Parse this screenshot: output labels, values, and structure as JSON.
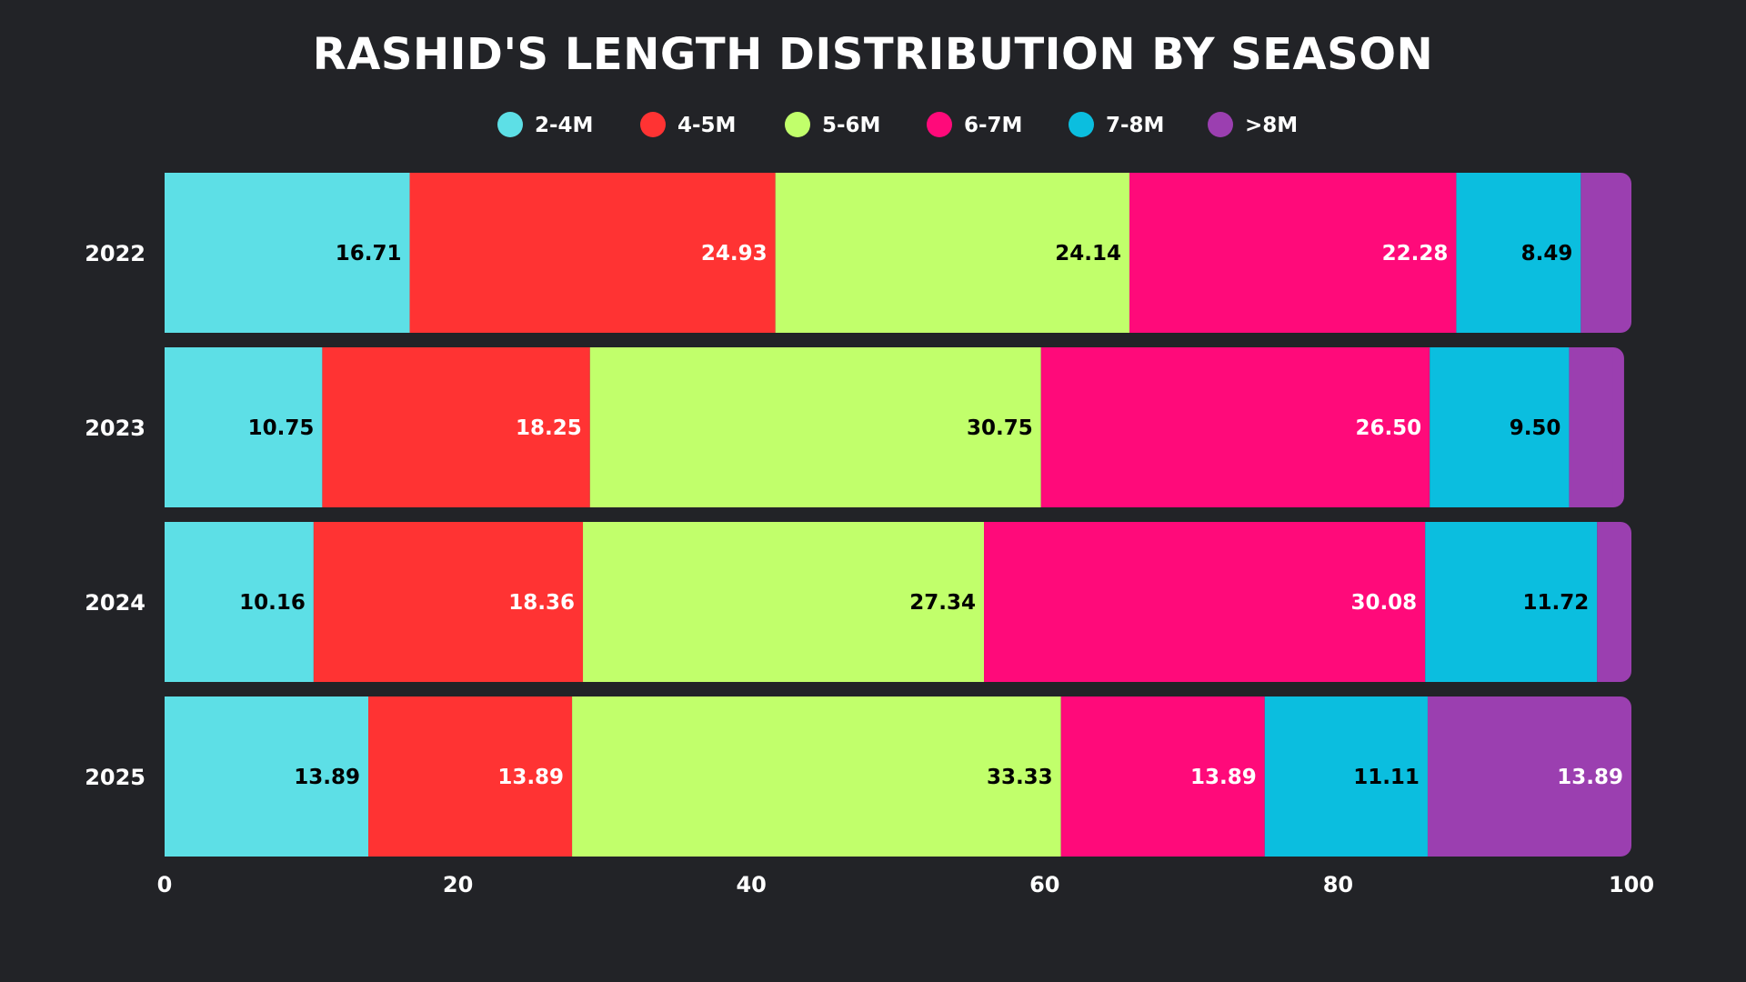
{
  "chart_data": {
    "type": "bar",
    "orientation": "horizontal",
    "stacked": true,
    "title": "RASHID'S LENGTH DISTRIBUTION BY SEASON",
    "categories": [
      "2022",
      "2023",
      "2024",
      "2025"
    ],
    "xlim": [
      0,
      100
    ],
    "xticks": [
      "0",
      "20",
      "40",
      "60",
      "80",
      "100"
    ],
    "grid": false,
    "legend_position": "top-center",
    "series": [
      {
        "name": "2-4M",
        "color": "#5ddfe6",
        "label_color": "#000000",
        "values": [
          16.71,
          10.75,
          10.16,
          13.89
        ],
        "labels": [
          "16.71",
          "10.75",
          "10.16",
          "13.89"
        ]
      },
      {
        "name": "4-5M",
        "color": "#ff3333",
        "label_color": "#ffffff",
        "values": [
          24.93,
          18.25,
          18.36,
          13.89
        ],
        "labels": [
          "24.93",
          "18.25",
          "18.36",
          "13.89"
        ]
      },
      {
        "name": "5-6M",
        "color": "#c1ff6b",
        "label_color": "#000000",
        "values": [
          24.14,
          30.75,
          27.34,
          33.33
        ],
        "labels": [
          "24.14",
          "30.75",
          "27.34",
          "33.33"
        ]
      },
      {
        "name": "6-7M",
        "color": "#ff0a7a",
        "label_color": "#ffffff",
        "values": [
          22.28,
          26.5,
          30.08,
          13.89
        ],
        "labels": [
          "22.28",
          "26.50",
          "30.08",
          "13.89"
        ]
      },
      {
        "name": "7-8M",
        "color": "#0bbedf",
        "label_color": "#000000",
        "values": [
          8.49,
          9.5,
          11.72,
          11.11
        ],
        "labels": [
          "8.49",
          "9.50",
          "11.72",
          "11.11"
        ]
      },
      {
        "name": ">8M",
        "color": "#9b3fb0",
        "label_color": "#ffffff",
        "values": [
          3.45,
          3.75,
          2.34,
          13.89
        ],
        "labels": [
          "",
          "",
          "",
          "13.89"
        ]
      }
    ]
  }
}
